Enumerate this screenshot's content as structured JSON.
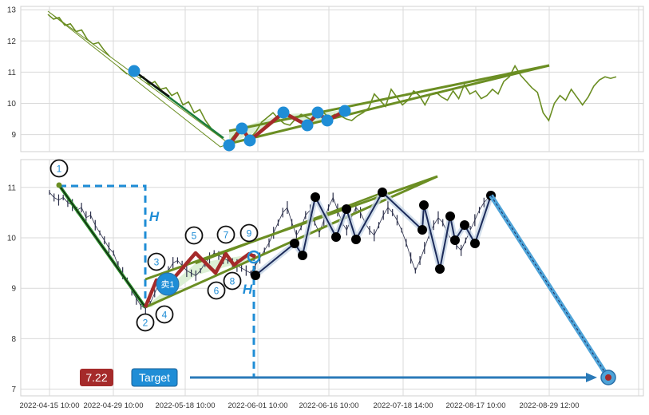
{
  "chart_data": [
    {
      "type": "line",
      "panel": "top",
      "y_ticks": [
        "9",
        "10",
        "11",
        "12",
        "13"
      ],
      "ylim": [
        8.5,
        13.1
      ],
      "grid": true,
      "colors": {
        "price": "#6b8e23",
        "wave_fill": "#d8eed0",
        "highlight": "#a52a2a",
        "marker": "#1f8dd6",
        "down_leg": "#1b7d3a"
      },
      "series": [
        {
          "values": [
            12.85,
            12.7,
            12.75,
            12.5,
            12.55,
            12.3,
            12.35,
            12.05,
            11.9,
            11.95,
            11.7,
            11.5,
            11.3,
            11.1,
            10.95,
            11.05,
            10.8,
            10.85,
            10.6,
            10.7,
            10.45,
            10.5,
            10.25,
            10.35,
            9.95,
            10.05,
            9.7,
            9.8,
            9.45,
            9.2,
            8.95,
            8.75,
            8.72,
            8.95,
            9.2,
            9.1,
            8.9,
            9.1,
            9.4,
            9.55,
            9.7,
            9.5,
            9.35,
            9.3,
            9.5,
            9.65,
            9.55,
            9.45,
            9.6,
            9.7,
            9.55,
            9.65,
            9.6,
            9.5,
            9.45,
            9.6,
            9.7,
            9.85,
            10.3,
            10.1,
            9.9,
            10.45,
            10.2,
            9.95,
            10.1,
            10.4,
            10.25,
            9.95,
            10.3,
            10.35,
            10.2,
            10.1,
            10.4,
            10.15,
            10.6,
            10.3,
            10.4,
            10.15,
            10.25,
            10.45,
            10.3,
            10.7,
            10.85,
            11.2,
            10.9,
            10.7,
            10.5,
            10.35,
            9.7,
            9.45,
            10.0,
            10.25,
            10.1,
            10.45,
            10.2,
            9.95,
            10.2,
            10.55,
            10.75,
            10.85,
            10.8,
            10.85
          ]
        }
      ],
      "wave_labels": [],
      "tag": []
    },
    {
      "type": "line",
      "panel": "bottom",
      "y_ticks": [
        "7",
        "8",
        "9",
        "10",
        "11"
      ],
      "ylim": [
        6.8,
        11.6
      ],
      "grid": true,
      "x_ticks": [
        "2022-04-15 10:00",
        "2022-04-29 10:00",
        "2022-05-18 10:00",
        "2022-06-01 10:00",
        "2022-06-16 10:00",
        "2022-07-18 14:00",
        "2022-08-17 10:00",
        "2022-08-29 12:00"
      ],
      "colors": {
        "candles": "#2b2f4a",
        "highlight": "#a52a2a",
        "trend": "#6b8e23",
        "wave_fill": "#d8eed0",
        "measure": "#1f8dd6",
        "dot": "#000000",
        "zigzag": "#1c2b5a",
        "target_line": "#2a7ab8",
        "projection": "#4ea3d8",
        "price_badge": "#a52a2a",
        "target_badge": "#1f8dd6"
      },
      "series": [
        {
          "values": [
            10.9,
            10.8,
            10.75,
            10.8,
            10.7,
            10.65,
            10.55,
            10.6,
            10.4,
            10.45,
            10.25,
            10.1,
            9.95,
            9.8,
            9.7,
            9.45,
            9.3,
            9.15,
            8.95,
            8.8,
            8.65,
            8.6,
            8.7,
            8.9,
            9.1,
            9.2,
            9.35,
            9.5,
            9.55,
            9.45,
            9.35,
            9.3,
            9.25,
            9.35,
            9.5,
            9.6,
            9.7,
            9.65,
            9.6,
            9.55,
            9.5,
            9.45,
            9.4,
            9.35,
            9.3,
            9.45,
            9.6,
            9.75,
            9.9,
            10.1,
            10.3,
            10.5,
            10.6,
            10.3,
            10.05,
            10.2,
            10.45,
            10.55,
            10.3,
            10.1,
            10.35,
            10.6,
            10.8,
            10.55,
            10.3,
            10.15,
            10.4,
            10.6,
            10.5,
            10.3,
            10.15,
            10.05,
            10.25,
            10.45,
            10.6,
            10.5,
            10.35,
            10.15,
            9.9,
            9.6,
            9.35,
            9.55,
            9.8,
            10.05,
            10.25,
            10.4,
            10.3,
            10.1,
            9.95,
            9.85,
            9.75,
            9.95,
            10.15,
            10.35,
            10.55,
            10.7,
            10.8
          ]
        }
      ],
      "wave_labels": [
        "1",
        "2",
        "3",
        "4",
        "5",
        "6",
        "7",
        "8",
        "9"
      ],
      "tag": [
        "卖1"
      ],
      "measure_label": "H",
      "price_badge": "7.22",
      "target_label": "Target"
    }
  ]
}
